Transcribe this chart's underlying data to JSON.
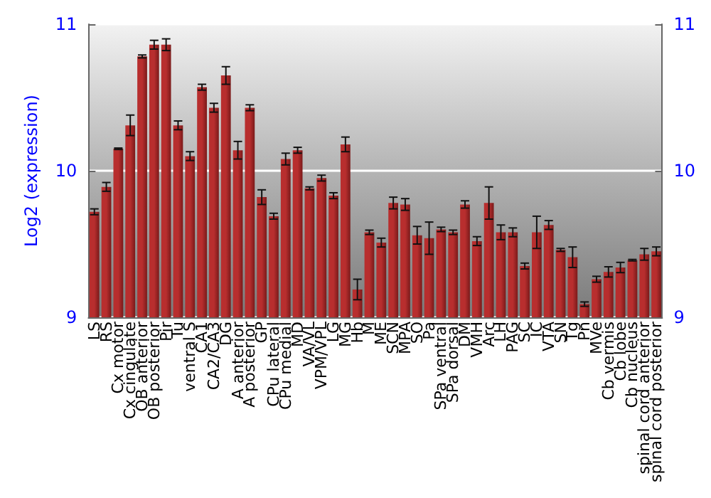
{
  "chart_data": {
    "type": "bar",
    "ylabel": "Log2 (expression)",
    "categories": [
      "LS",
      "RS",
      "Cx motor",
      "Cx cingulate",
      "OB anterior",
      "OB posterior",
      "Pir",
      "Tu",
      "ventral S",
      "CA1",
      "CA2/CA3",
      "DG",
      "A anterior",
      "A posterior",
      "GP",
      "CPu lateral",
      "CPu medial",
      "MD",
      "VA/VL",
      "VPM/VPL",
      "LG",
      "MG",
      "Hb",
      "M",
      "ME",
      "SCN",
      "MPA",
      "SO",
      "Pa",
      "SPa ventral",
      "SPa dorsal",
      "DM",
      "VMH",
      "Arc",
      "LH",
      "PAG",
      "SC",
      "IC",
      "VTA",
      "SN",
      "Tg",
      "Pn",
      "MVe",
      "Cb vermis",
      "Cb lobe",
      "Cb nucleus",
      "spinal cord anterior",
      "spinal cord posterior"
    ],
    "values": [
      9.72,
      9.89,
      10.15,
      10.31,
      10.78,
      10.86,
      10.86,
      10.31,
      10.1,
      10.57,
      10.43,
      10.65,
      10.14,
      10.43,
      9.82,
      9.69,
      10.08,
      10.14,
      9.88,
      9.95,
      9.83,
      10.18,
      9.19,
      9.58,
      9.51,
      9.78,
      9.77,
      9.56,
      9.54,
      9.6,
      9.58,
      9.77,
      9.52,
      9.78,
      9.58,
      9.58,
      9.35,
      9.58,
      9.63,
      9.46,
      9.41,
      9.09,
      9.26,
      9.31,
      9.34,
      9.39,
      9.43,
      9.45
    ],
    "errors": [
      0.02,
      0.03,
      0.005,
      0.07,
      0.01,
      0.03,
      0.04,
      0.03,
      0.03,
      0.02,
      0.03,
      0.06,
      0.06,
      0.02,
      0.05,
      0.02,
      0.04,
      0.02,
      0.01,
      0.02,
      0.02,
      0.05,
      0.07,
      0.015,
      0.03,
      0.04,
      0.04,
      0.06,
      0.11,
      0.015,
      0.015,
      0.025,
      0.03,
      0.11,
      0.05,
      0.03,
      0.02,
      0.11,
      0.03,
      0.01,
      0.07,
      0.015,
      0.02,
      0.035,
      0.035,
      0.005,
      0.04,
      0.03
    ],
    "color": "#b82e2e",
    "ylim": [
      9,
      11
    ],
    "yticks": [
      9,
      10,
      11
    ],
    "y2lim": [
      9,
      11
    ],
    "y2ticks": [
      9,
      10,
      11
    ],
    "grid": "y"
  }
}
